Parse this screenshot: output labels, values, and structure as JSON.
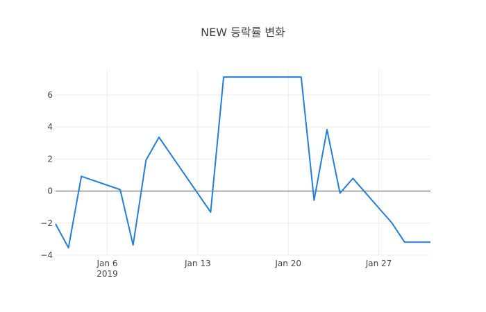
{
  "chart_data": {
    "type": "line",
    "title": "NEW 등락률 변화",
    "xlabel": "",
    "ylabel": "",
    "x": [
      "2019-01-02",
      "2019-01-03",
      "2019-01-04",
      "2019-01-07",
      "2019-01-08",
      "2019-01-09",
      "2019-01-10",
      "2019-01-14",
      "2019-01-15",
      "2019-01-21",
      "2019-01-22",
      "2019-01-23",
      "2019-01-24",
      "2019-01-25",
      "2019-01-28",
      "2019-01-29",
      "2019-01-30",
      "2019-01-31"
    ],
    "series": [
      {
        "name": "등락률",
        "color": "#1f7ee0",
        "values": [
          -2.05,
          -3.54,
          0.92,
          0.09,
          -3.37,
          1.93,
          3.36,
          -1.31,
          7.12,
          7.12,
          -0.57,
          3.84,
          -0.13,
          0.79,
          -1.97,
          -3.19,
          -3.19,
          -3.19
        ]
      }
    ],
    "ylim": [
      -4,
      7.6
    ],
    "xlim": [
      "2019-01-02",
      "2019-01-31"
    ],
    "yticks": [
      -4,
      -2,
      0,
      2,
      4,
      6
    ],
    "ytick_labels": [
      "−4",
      "−2",
      "0",
      "2",
      "4",
      "6"
    ],
    "xticks": [
      "2019-01-06",
      "2019-01-13",
      "2019-01-20",
      "2019-01-27"
    ],
    "xtick_labels": [
      "Jan 6",
      "Jan 13",
      "Jan 20",
      "Jan 27"
    ],
    "xtick_sublabel": "2019",
    "grid": true,
    "legend": null
  },
  "colors": {
    "line": "#1f7ee0",
    "grid": "#eeeeee",
    "zeroline": "#444444",
    "text": "#444444"
  }
}
